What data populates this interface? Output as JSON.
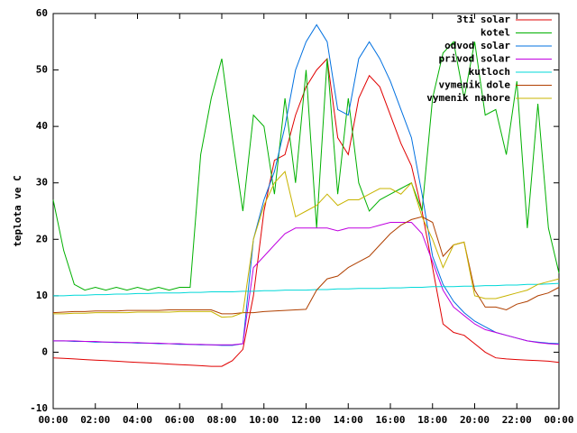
{
  "chart_data": {
    "type": "line",
    "ylabel": "teplota ve C",
    "ylim": [
      -10,
      60
    ],
    "yticks": [
      -10,
      0,
      10,
      20,
      30,
      40,
      50,
      60
    ],
    "xlim": [
      0,
      24
    ],
    "xticks": [
      {
        "value": 0,
        "label": "00:00"
      },
      {
        "value": 2,
        "label": "02:00"
      },
      {
        "value": 4,
        "label": "04:00"
      },
      {
        "value": 6,
        "label": "06:00"
      },
      {
        "value": 8,
        "label": "08:00"
      },
      {
        "value": 10,
        "label": "10:00"
      },
      {
        "value": 12,
        "label": "12:00"
      },
      {
        "value": 14,
        "label": "14:00"
      },
      {
        "value": 16,
        "label": "16:00"
      },
      {
        "value": 18,
        "label": "18:00"
      },
      {
        "value": 20,
        "label": "20:00"
      },
      {
        "value": 22,
        "label": "22:00"
      },
      {
        "value": 24,
        "label": "00:00"
      }
    ],
    "grid": false,
    "legend": "upper right",
    "x": [
      0,
      0.5,
      1,
      1.5,
      2,
      2.5,
      3,
      3.5,
      4,
      4.5,
      5,
      5.5,
      6,
      6.5,
      7,
      7.5,
      8,
      8.5,
      9,
      9.5,
      10,
      10.5,
      11,
      11.5,
      12,
      12.5,
      13,
      13.5,
      14,
      14.5,
      15,
      15.5,
      16,
      16.5,
      17,
      17.5,
      18,
      18.5,
      19,
      19.5,
      20,
      20.5,
      21,
      21.5,
      22,
      22.5,
      23,
      23.5,
      24
    ],
    "series": [
      {
        "name": "3ti solar",
        "color": "#e00000",
        "values": [
          -1,
          -1.1,
          -1.2,
          -1.3,
          -1.4,
          -1.5,
          -1.6,
          -1.7,
          -1.8,
          -1.9,
          -2,
          -2.1,
          -2.2,
          -2.3,
          -2.4,
          -2.5,
          -2.5,
          -1.5,
          0.5,
          10,
          25,
          34,
          35,
          42,
          47,
          50,
          52,
          38,
          35,
          45,
          49,
          47,
          42,
          37,
          33,
          25,
          15,
          5,
          3.5,
          3,
          1.5,
          0,
          -1,
          -1.2,
          -1.3,
          -1.4,
          -1.5,
          -1.6,
          -1.8
        ]
      },
      {
        "name": "kotel",
        "color": "#00b000",
        "values": [
          27,
          18,
          12,
          11,
          11.5,
          11,
          11.5,
          11,
          11.5,
          11,
          11.5,
          11,
          11.5,
          11.5,
          35,
          45,
          52,
          38,
          25,
          42,
          40,
          28,
          45,
          30,
          50,
          22,
          52,
          28,
          45,
          30,
          25,
          27,
          28,
          29,
          30,
          25,
          45,
          53,
          55,
          45,
          55,
          42,
          43,
          35,
          48,
          22,
          44,
          22,
          14
        ]
      },
      {
        "name": "odvod solar",
        "color": "#0070e0",
        "values": [
          2,
          2,
          1.9,
          1.9,
          1.8,
          1.8,
          1.7,
          1.7,
          1.6,
          1.6,
          1.5,
          1.5,
          1.4,
          1.4,
          1.3,
          1.3,
          1.2,
          1.2,
          1.5,
          20,
          27,
          32,
          40,
          50,
          55,
          58,
          55,
          43,
          42,
          52,
          55,
          52,
          48,
          43,
          38,
          28,
          17,
          12,
          9,
          7,
          5.5,
          4.5,
          3.5,
          3,
          2.5,
          2,
          1.8,
          1.6,
          1.5
        ]
      },
      {
        "name": "privod solar",
        "color": "#c000e0",
        "values": [
          2,
          2,
          2,
          1.9,
          1.9,
          1.8,
          1.8,
          1.7,
          1.7,
          1.6,
          1.6,
          1.5,
          1.5,
          1.4,
          1.4,
          1.3,
          1.3,
          1.3,
          1.5,
          15,
          17,
          19,
          21,
          22,
          22,
          22,
          22,
          21.5,
          22,
          22,
          22,
          22.5,
          23,
          23,
          23,
          21,
          16,
          11,
          8,
          6.5,
          5,
          4,
          3.5,
          3,
          2.5,
          2,
          1.7,
          1.5,
          1.4
        ]
      },
      {
        "name": "kutloch",
        "color": "#00d8d8",
        "values": [
          10,
          10,
          10.1,
          10.1,
          10.2,
          10.2,
          10.3,
          10.3,
          10.4,
          10.4,
          10.5,
          10.5,
          10.5,
          10.6,
          10.6,
          10.7,
          10.7,
          10.7,
          10.8,
          10.8,
          10.9,
          10.9,
          11,
          11,
          11,
          11.1,
          11.1,
          11.2,
          11.2,
          11.3,
          11.3,
          11.3,
          11.4,
          11.4,
          11.5,
          11.5,
          11.6,
          11.6,
          11.6,
          11.7,
          11.7,
          11.8,
          11.8,
          11.9,
          11.9,
          12,
          12,
          12.1,
          12.2
        ]
      },
      {
        "name": "vymenik dole",
        "color": "#b04000",
        "values": [
          7,
          7.1,
          7.2,
          7.2,
          7.3,
          7.3,
          7.3,
          7.4,
          7.4,
          7.4,
          7.4,
          7.5,
          7.5,
          7.5,
          7.5,
          7.5,
          6.8,
          6.8,
          7,
          7,
          7.2,
          7.3,
          7.4,
          7.5,
          7.6,
          11,
          13,
          13.5,
          15,
          16,
          17,
          19,
          21,
          22.5,
          23.5,
          24,
          23,
          17,
          19,
          19.5,
          11,
          8,
          8,
          7.5,
          8.5,
          9,
          10,
          10.5,
          11.5
        ]
      },
      {
        "name": "vymenik nahore",
        "color": "#c8b400",
        "values": [
          6.8,
          6.8,
          6.9,
          6.9,
          7,
          7,
          7,
          7,
          7.1,
          7.1,
          7.1,
          7.1,
          7.2,
          7.2,
          7.2,
          7.2,
          6.2,
          6.3,
          7,
          20,
          26,
          30,
          32,
          24,
          25,
          26,
          28,
          26,
          27,
          27,
          28,
          29,
          29,
          28,
          30,
          24,
          20,
          15,
          19,
          19.5,
          10,
          9.5,
          9.5,
          10,
          10.5,
          11,
          12,
          12.5,
          13
        ]
      }
    ]
  }
}
